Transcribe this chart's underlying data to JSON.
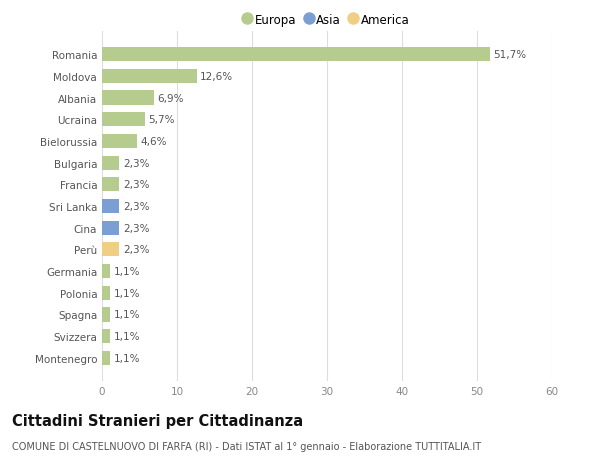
{
  "categories": [
    "Romania",
    "Moldova",
    "Albania",
    "Ucraina",
    "Bielorussia",
    "Bulgaria",
    "Francia",
    "Sri Lanka",
    "Cina",
    "Perù",
    "Germania",
    "Polonia",
    "Spagna",
    "Svizzera",
    "Montenegro"
  ],
  "values": [
    51.7,
    12.6,
    6.9,
    5.7,
    4.6,
    2.3,
    2.3,
    2.3,
    2.3,
    2.3,
    1.1,
    1.1,
    1.1,
    1.1,
    1.1
  ],
  "labels": [
    "51,7%",
    "12,6%",
    "6,9%",
    "5,7%",
    "4,6%",
    "2,3%",
    "2,3%",
    "2,3%",
    "2,3%",
    "2,3%",
    "1,1%",
    "1,1%",
    "1,1%",
    "1,1%",
    "1,1%"
  ],
  "colors": [
    "#b5cc8e",
    "#b5cc8e",
    "#b5cc8e",
    "#b5cc8e",
    "#b5cc8e",
    "#b5cc8e",
    "#b5cc8e",
    "#7b9fd4",
    "#7b9fd4",
    "#f0cf84",
    "#b5cc8e",
    "#b5cc8e",
    "#b5cc8e",
    "#b5cc8e",
    "#b5cc8e"
  ],
  "legend_labels": [
    "Europa",
    "Asia",
    "America"
  ],
  "legend_colors": [
    "#b5cc8e",
    "#7b9fd4",
    "#f0cf84"
  ],
  "title": "Cittadini Stranieri per Cittadinanza",
  "subtitle": "COMUNE DI CASTELNUOVO DI FARFA (RI) - Dati ISTAT al 1° gennaio - Elaborazione TUTTITALIA.IT",
  "xlim": [
    0,
    60
  ],
  "xticks": [
    0,
    10,
    20,
    30,
    40,
    50,
    60
  ],
  "background_color": "#ffffff",
  "grid_color": "#dddddd",
  "bar_height": 0.65,
  "label_fontsize": 7.5,
  "tick_fontsize": 7.5,
  "title_fontsize": 10.5,
  "subtitle_fontsize": 7.0
}
